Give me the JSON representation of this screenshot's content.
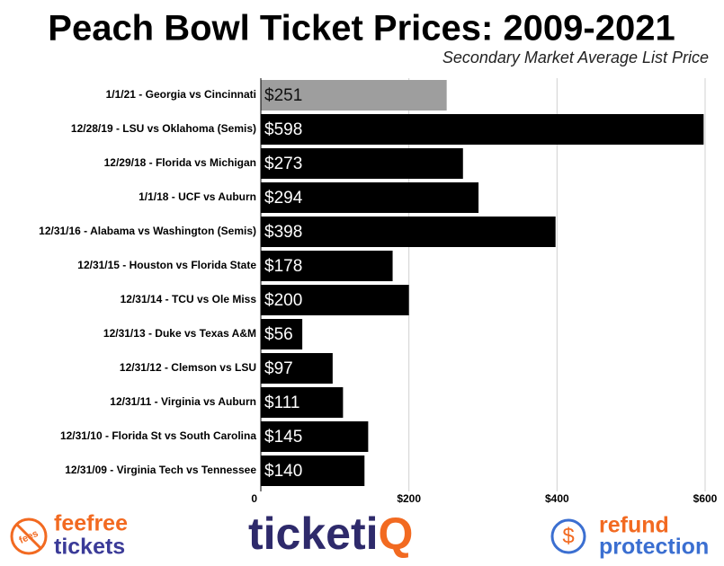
{
  "chart_data": {
    "type": "bar",
    "orientation": "horizontal",
    "title": "Peach Bowl Ticket Prices: 2009-2021",
    "subtitle": "Secondary Market Average List Price",
    "categories": [
      "1/1/21 - Georgia vs Cincinnati",
      "12/28/19 - LSU vs Oklahoma (Semis)",
      "12/29/18 - Florida vs Michigan",
      "1/1/18 - UCF vs Auburn",
      "12/31/16 - Alabama vs Washington (Semis)",
      "12/31/15 - Houston vs Florida State",
      "12/31/14 - TCU vs Ole Miss",
      "12/31/13 - Duke vs Texas A&M",
      "12/31/12 - Clemson vs LSU",
      "12/31/11 - Virginia vs Auburn",
      "12/31/10 - Florida St vs South Carolina",
      "12/31/09 - Virginia Tech vs Tennessee"
    ],
    "values": [
      251,
      598,
      273,
      294,
      398,
      178,
      200,
      56,
      97,
      111,
      145,
      140
    ],
    "value_labels": [
      "$251",
      "$598",
      "$273",
      "$294",
      "$398",
      "$178",
      "$200",
      "$56",
      "$97",
      "$111",
      "$145",
      "$140"
    ],
    "colors": [
      "#9e9e9e",
      "#000000",
      "#000000",
      "#000000",
      "#000000",
      "#000000",
      "#000000",
      "#000000",
      "#000000",
      "#000000",
      "#000000",
      "#000000"
    ],
    "xlim": [
      0,
      600
    ],
    "xticks": [
      0,
      {
        "value": 200,
        "label": "$200"
      },
      {
        "value": 400,
        "label": "$400"
      },
      {
        "value": 600,
        "label": "$600"
      }
    ],
    "grid": true
  },
  "footer": {
    "icon_text": "fees",
    "left_top": "feefree",
    "left_bottom": "tickets",
    "center_main": "ticketi",
    "center_accent": "Q",
    "right_symbol": "$",
    "right_top": "refund",
    "right_bottom": "protection"
  }
}
